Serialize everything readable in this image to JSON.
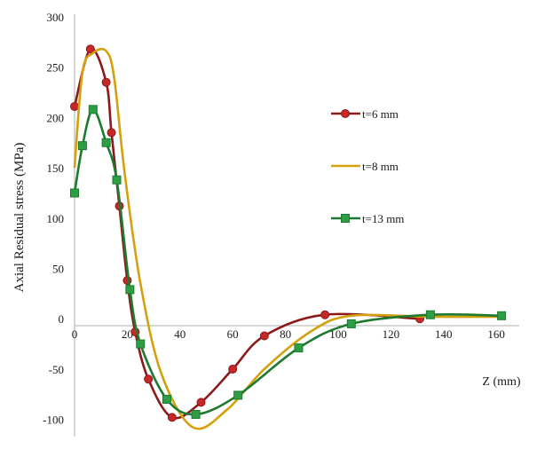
{
  "chart_data": {
    "type": "line",
    "title": "",
    "xlabel": "Z (mm)",
    "ylabel": "Axial Residual stress (MPa)",
    "xlim": [
      0,
      165
    ],
    "ylim": [
      -110,
      300
    ],
    "x_ticks": [
      "0",
      "20",
      "40",
      "60",
      "80",
      "100",
      "120",
      "140",
      "160"
    ],
    "y_ticks": [
      "300",
      "250",
      "200",
      "150",
      "100",
      "50",
      "0",
      "-50",
      "-100"
    ],
    "x_tick_values": [
      0,
      20,
      40,
      60,
      80,
      100,
      120,
      140,
      160
    ],
    "y_tick_values": [
      300,
      250,
      200,
      150,
      100,
      50,
      0,
      -50,
      -100
    ],
    "grid": false,
    "legend_position": "right",
    "series": [
      {
        "name": "t=6 mm",
        "color": "#8b1a1a",
        "marker": "circle",
        "points": [
          [
            0,
            211
          ],
          [
            6,
            268
          ],
          [
            12,
            235
          ],
          [
            14,
            185
          ],
          [
            17,
            112
          ],
          [
            20,
            38
          ],
          [
            23,
            -13
          ],
          [
            28,
            -60
          ],
          [
            37,
            -98
          ],
          [
            48,
            -83
          ],
          [
            60,
            -50
          ],
          [
            72,
            -17
          ],
          [
            95,
            4
          ],
          [
            131,
            0
          ]
        ]
      },
      {
        "name": "t=8 mm",
        "color": "#d4a00d",
        "marker": "none",
        "points": [
          [
            0,
            150
          ],
          [
            3,
            245
          ],
          [
            7,
            264
          ],
          [
            12,
            266
          ],
          [
            15,
            240
          ],
          [
            19,
            145
          ],
          [
            25,
            35
          ],
          [
            33,
            -55
          ],
          [
            45,
            -108
          ],
          [
            58,
            -90
          ],
          [
            72,
            -50
          ],
          [
            90,
            -12
          ],
          [
            105,
            3
          ],
          [
            135,
            2
          ],
          [
            162,
            2
          ]
        ]
      },
      {
        "name": "t=13 mm",
        "color": "#1e7a30",
        "marker": "square",
        "points": [
          [
            0,
            125
          ],
          [
            3,
            172
          ],
          [
            7,
            208
          ],
          [
            12,
            175
          ],
          [
            16,
            138
          ],
          [
            21,
            29
          ],
          [
            25,
            -25
          ],
          [
            35,
            -80
          ],
          [
            46,
            -95
          ],
          [
            62,
            -76
          ],
          [
            85,
            -29
          ],
          [
            105,
            -5
          ],
          [
            135,
            4
          ],
          [
            162,
            3
          ]
        ]
      }
    ]
  }
}
